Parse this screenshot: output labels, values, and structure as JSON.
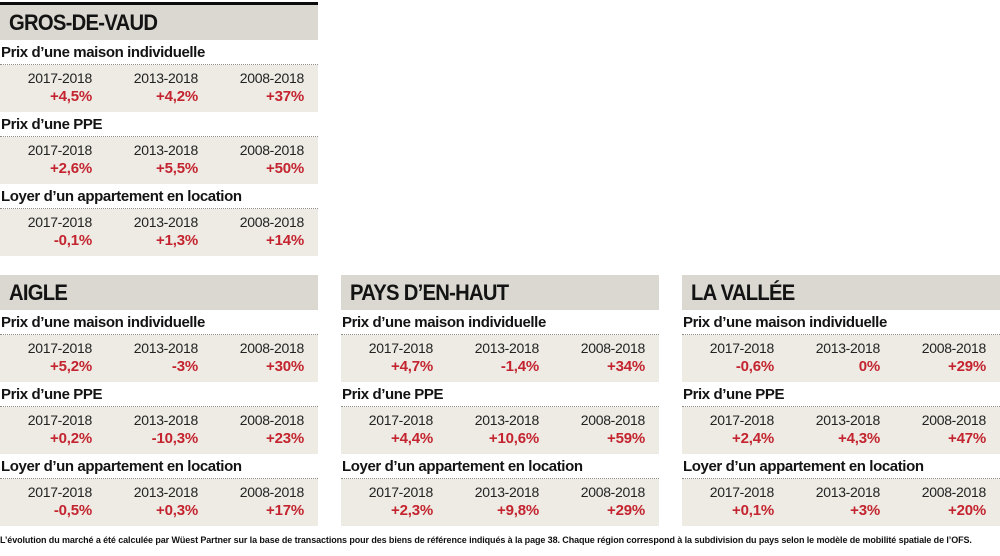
{
  "colors": {
    "accent_red": "#c4242f",
    "card_header_bg": "#dad8d0",
    "value_block_bg": "#edebe4",
    "top_border": "#0b0b0b"
  },
  "periods": [
    "2017-2018",
    "2013-2018",
    "2008-2018"
  ],
  "cards": [
    {
      "title": "GROS-DE-VAUD",
      "sections": [
        {
          "label": "Prix d’une maison individuelle",
          "values": [
            "+4,5%",
            "+4,2%",
            "+37%"
          ]
        },
        {
          "label": "Prix d’une PPE",
          "values": [
            "+2,6%",
            "+5,5%",
            "+50%"
          ]
        },
        {
          "label": "Loyer d’un appartement en location",
          "values": [
            "-0,1%",
            "+1,3%",
            "+14%"
          ]
        }
      ]
    },
    {
      "title": "AIGLE",
      "sections": [
        {
          "label": "Prix d’une maison individuelle",
          "values": [
            "+5,2%",
            "-3%",
            "+30%"
          ]
        },
        {
          "label": "Prix d’une PPE",
          "values": [
            "+0,2%",
            "-10,3%",
            "+23%"
          ]
        },
        {
          "label": "Loyer d’un appartement en location",
          "values": [
            "-0,5%",
            "+0,3%",
            "+17%"
          ]
        }
      ]
    },
    {
      "title": "PAYS D’EN-HAUT",
      "sections": [
        {
          "label": "Prix d’une maison individuelle",
          "values": [
            "+4,7%",
            "-1,4%",
            "+34%"
          ]
        },
        {
          "label": "Prix d’une PPE",
          "values": [
            "+4,4%",
            "+10,6%",
            "+59%"
          ]
        },
        {
          "label": "Loyer d’un appartement en location",
          "values": [
            "+2,3%",
            "+9,8%",
            "+29%"
          ]
        }
      ]
    },
    {
      "title": "LA VALLÉE",
      "sections": [
        {
          "label": "Prix d’une maison individuelle",
          "values": [
            "-0,6%",
            "0%",
            "+29%"
          ]
        },
        {
          "label": "Prix d’une PPE",
          "values": [
            "+2,4%",
            "+4,3%",
            "+47%"
          ]
        },
        {
          "label": "Loyer d’un appartement en location",
          "values": [
            "+0,1%",
            "+3%",
            "+20%"
          ]
        }
      ]
    }
  ],
  "footnote": "L’évolution du marché a été calculée par Wüest Partner sur la base de transactions pour des biens de référence indiqués à la page 38. Chaque région correspond à la subdivision du pays selon le modèle de mobilité spatiale de l’OFS."
}
